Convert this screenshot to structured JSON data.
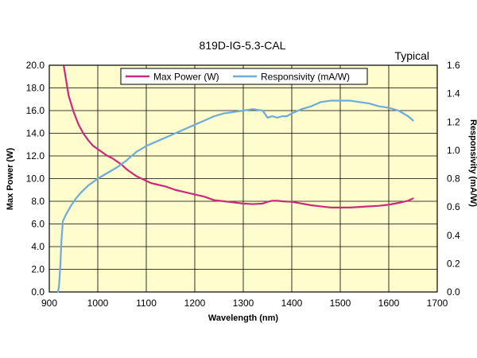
{
  "chart_data": {
    "type": "line",
    "title": "819D-IG-5.3-CAL",
    "note": "Typical",
    "xlabel": "Wavelength (nm)",
    "ylabel_left": "Max Power (W)",
    "ylabel_right": "Responsivity (mA/W)",
    "xlim": [
      900,
      1700
    ],
    "ylim_left": [
      0,
      20
    ],
    "ylim_right": [
      0,
      1.6
    ],
    "x_ticks": [
      "900",
      "1000",
      "1100",
      "1200",
      "1300",
      "1400",
      "1500",
      "1600",
      "1700"
    ],
    "y_left_ticks": [
      "0.0",
      "2.0",
      "4.0",
      "6.0",
      "8.0",
      "10.0",
      "12.0",
      "14.0",
      "16.0",
      "18.0",
      "20.0"
    ],
    "y_right_ticks": [
      "0.0",
      "0.2",
      "0.4",
      "0.6",
      "0.8",
      "1.0",
      "1.2",
      "1.4",
      "1.6"
    ],
    "grid": true,
    "legend_position": "top-center",
    "series": [
      {
        "name": "Max Power (W)",
        "axis": "left",
        "color": "#cc2a7c",
        "x": [
          930,
          935,
          940,
          950,
          960,
          970,
          980,
          990,
          1000,
          1010,
          1020,
          1030,
          1040,
          1050,
          1060,
          1070,
          1080,
          1090,
          1100,
          1110,
          1120,
          1140,
          1160,
          1180,
          1200,
          1220,
          1240,
          1260,
          1280,
          1300,
          1320,
          1340,
          1350,
          1360,
          1370,
          1380,
          1400,
          1420,
          1440,
          1460,
          1480,
          1500,
          1520,
          1540,
          1560,
          1580,
          1600,
          1620,
          1640,
          1650
        ],
        "y": [
          19.9,
          18.6,
          17.3,
          15.9,
          14.8,
          14.0,
          13.4,
          12.9,
          12.6,
          12.3,
          12.0,
          11.8,
          11.5,
          11.2,
          10.8,
          10.5,
          10.2,
          10.0,
          9.8,
          9.6,
          9.5,
          9.3,
          9.0,
          8.8,
          8.6,
          8.4,
          8.1,
          8.0,
          7.9,
          7.8,
          7.75,
          7.8,
          7.95,
          8.05,
          8.05,
          8.0,
          7.95,
          7.8,
          7.65,
          7.55,
          7.45,
          7.45,
          7.45,
          7.5,
          7.55,
          7.6,
          7.7,
          7.85,
          8.05,
          8.25
        ]
      },
      {
        "name": "Responsivity (mA/W)",
        "axis": "right",
        "color": "#6eaadc",
        "x": [
          918,
          920,
          923,
          925,
          928,
          935,
          945,
          955,
          965,
          980,
          1000,
          1020,
          1040,
          1060,
          1080,
          1100,
          1120,
          1140,
          1160,
          1180,
          1200,
          1220,
          1240,
          1260,
          1280,
          1300,
          1320,
          1340,
          1350,
          1360,
          1370,
          1380,
          1390,
          1400,
          1420,
          1440,
          1460,
          1480,
          1500,
          1520,
          1540,
          1560,
          1580,
          1600,
          1620,
          1640,
          1650
        ],
        "y": [
          0.0,
          0.04,
          0.2,
          0.36,
          0.5,
          0.55,
          0.61,
          0.66,
          0.7,
          0.75,
          0.8,
          0.84,
          0.88,
          0.93,
          0.99,
          1.03,
          1.06,
          1.09,
          1.12,
          1.15,
          1.18,
          1.21,
          1.24,
          1.26,
          1.27,
          1.28,
          1.29,
          1.28,
          1.23,
          1.24,
          1.23,
          1.24,
          1.24,
          1.26,
          1.29,
          1.31,
          1.34,
          1.35,
          1.35,
          1.35,
          1.34,
          1.33,
          1.31,
          1.3,
          1.28,
          1.24,
          1.21
        ]
      }
    ]
  }
}
